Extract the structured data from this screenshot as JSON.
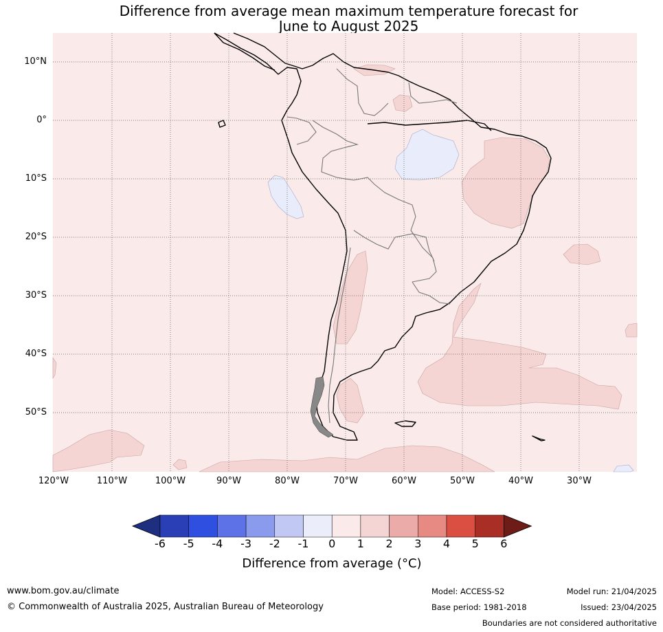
{
  "title_line1": "Difference from average mean maximum temperature forecast for",
  "title_line2": "June to August 2025",
  "lat_labels": [
    "10°N",
    "0°",
    "10°S",
    "20°S",
    "30°S",
    "40°S",
    "50°S"
  ],
  "lon_labels": [
    "120°W",
    "110°W",
    "100°W",
    "90°W",
    "80°W",
    "70°W",
    "60°W",
    "50°W",
    "40°W",
    "30°W"
  ],
  "colorbar": {
    "ticks": [
      "-6",
      "-5",
      "-4",
      "-3",
      "-2",
      "-1",
      "0",
      "1",
      "2",
      "3",
      "4",
      "5",
      "6"
    ],
    "colors": [
      "#1f2f80",
      "#2a3fb5",
      "#2f4fe0",
      "#5c72e6",
      "#8a9bee",
      "#c2c8f4",
      "#ebedfb",
      "#fbeaea",
      "#f5d4d4",
      "#ebaba8",
      "#e88a84",
      "#db4f43",
      "#a92e25",
      "#6e1c18"
    ],
    "label": "Difference from average (°C)"
  },
  "map_colors": {
    "background": "#fbeaea",
    "warm_1_2": "#f4d5d3",
    "cool_-1_0": "#e9ecfa",
    "land_outline": "#000000",
    "internal_border": "#777777"
  },
  "footer": {
    "url": "www.bom.gov.au/climate",
    "copyright": "© Commonwealth of Australia 2025, Australian Bureau of Meteorology",
    "model": "Model: ACCESS-S2",
    "base_period": "Base period: 1981-2018",
    "model_run": "Model run: 21/04/2025",
    "issued": "Issued: 23/04/2025",
    "disclaimer": "Boundaries are not considered authoritative"
  }
}
